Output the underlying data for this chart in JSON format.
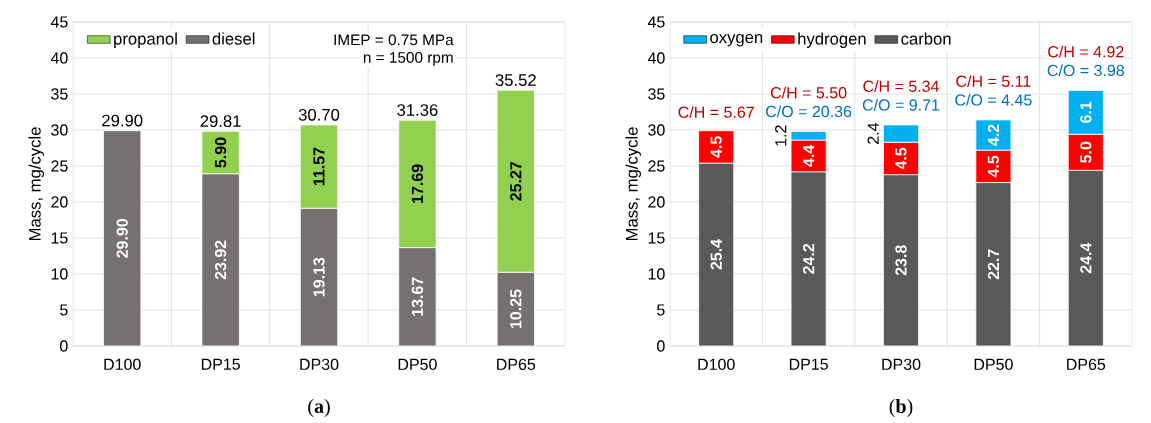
{
  "chart_data": [
    {
      "type": "bar",
      "stacked": true,
      "categories": [
        "D100",
        "DP15",
        "DP30",
        "DP50",
        "DP65"
      ],
      "ylabel": "Mass, mg/cycle",
      "ylim": [
        0,
        45
      ],
      "yticks": [
        0,
        5,
        10,
        15,
        20,
        25,
        30,
        35,
        40,
        45
      ],
      "grid": true,
      "legend": "top left",
      "series": [
        {
          "name": "diesel",
          "color": "#767171",
          "values": [
            29.9,
            23.92,
            19.13,
            13.67,
            10.25
          ],
          "value_labels": [
            "29.90",
            "23.92",
            "19.13",
            "13.67",
            "10.25"
          ]
        },
        {
          "name": "propanol",
          "color": "#92d050",
          "values": [
            null,
            5.9,
            11.57,
            17.69,
            25.27
          ],
          "value_labels": [
            null,
            "5.90",
            "11.57",
            "17.69",
            "25.27"
          ]
        }
      ],
      "totals": [
        "29.90",
        "29.81",
        "30.70",
        "31.36",
        "35.52"
      ],
      "annotations": [
        "IMEP = 0.75 MPa",
        "n = 1500 rpm",
        "(**a**)"
      ]
    },
    {
      "type": "bar",
      "stacked": true,
      "categories": [
        "D100",
        "DP15",
        "DP30",
        "DP50",
        "DP65"
      ],
      "ylabel": "Mass, mg/cycle",
      "ylim": [
        0,
        45
      ],
      "yticks": [
        0,
        5,
        10,
        15,
        20,
        25,
        30,
        35,
        40,
        45
      ],
      "grid": true,
      "legend": "top left",
      "series": [
        {
          "name": "carbon",
          "color": "#595959",
          "values": [
            25.4,
            24.2,
            23.8,
            22.7,
            24.4
          ],
          "value_labels": [
            "25.4",
            "24.2",
            "23.8",
            "22.7",
            "24.4"
          ]
        },
        {
          "name": "hydrogen",
          "color": "#ff0000",
          "values": [
            4.5,
            4.4,
            4.5,
            4.5,
            5.0
          ],
          "value_labels": [
            "4.5",
            "4.4",
            "4.5",
            "4.5",
            "5.0"
          ]
        },
        {
          "name": "oxygen",
          "color": "#00b0f0",
          "values": [
            null,
            1.2,
            2.4,
            4.2,
            6.1
          ],
          "value_labels": [
            null,
            "1.2",
            "2.4",
            "4.2",
            "6.1"
          ]
        }
      ],
      "annotations": [
        "C/H = 5.67",
        "C/H = 5.50",
        "C/H = 5.34",
        "C/H = 5.11",
        "C/H = 4.92",
        "C/O = 20.36",
        "C/O = 9.71",
        "C/O = 4.45",
        "C/O = 3.98",
        "(**b**)"
      ]
    }
  ]
}
